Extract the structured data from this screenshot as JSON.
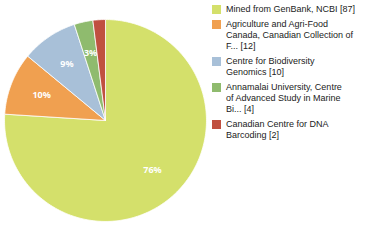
{
  "chart_data": {
    "type": "pie",
    "categories": [
      "Mined from GenBank, NCBI [87]",
      "Agriculture and Agri-Food\nCanada, Canadian Collection of\nF... [12]",
      "Centre for Biodiversity\nGenomics [10]",
      "Annamalai University, Centre\nof Advanced Study in Marine\nBi... [4]",
      "Canadian Centre for DNA\nBarcoding [2]"
    ],
    "values": [
      76,
      10,
      9,
      3,
      2
    ],
    "value_labels": [
      "76%",
      "10%",
      "9%",
      "3%",
      null
    ],
    "colors": [
      "#d4e06b",
      "#f0a050",
      "#a8c0d8",
      "#8fbb6e",
      "#c05040"
    ],
    "data_labels": true,
    "legend": "right"
  }
}
